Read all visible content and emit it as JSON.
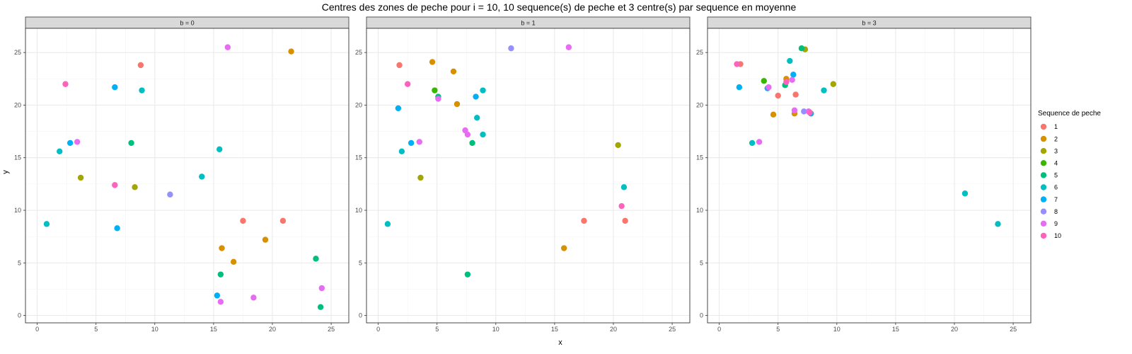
{
  "chart_data": {
    "type": "scatter",
    "title": "Centres des zones de peche pour i = 10, 10 sequence(s) de peche et 3 centre(s) par sequence en moyenne",
    "xlabel": "x",
    "ylabel": "y",
    "xlim": [
      -1,
      26.5
    ],
    "ylim": [
      -0.7,
      27.3
    ],
    "xticks": [
      0,
      5,
      10,
      15,
      20,
      25
    ],
    "yticks": [
      0,
      5,
      10,
      15,
      20,
      25
    ],
    "grid": true,
    "legend": {
      "title": "Sequence de peche",
      "position": "right",
      "entries": [
        {
          "label": "1",
          "color": "#F8766D"
        },
        {
          "label": "2",
          "color": "#D89000"
        },
        {
          "label": "3",
          "color": "#A3A500"
        },
        {
          "label": "4",
          "color": "#39B600"
        },
        {
          "label": "5",
          "color": "#00BF7D"
        },
        {
          "label": "6",
          "color": "#00BFC4"
        },
        {
          "label": "7",
          "color": "#00B0F6"
        },
        {
          "label": "8",
          "color": "#9590FF"
        },
        {
          "label": "9",
          "color": "#E76BF3"
        },
        {
          "label": "10",
          "color": "#FF62BC"
        }
      ]
    },
    "facets": [
      {
        "label": "b = 0",
        "points": [
          {
            "x": 8.8,
            "y": 23.8,
            "seq": "1"
          },
          {
            "x": 17.5,
            "y": 9.0,
            "seq": "1"
          },
          {
            "x": 20.9,
            "y": 9.0,
            "seq": "1"
          },
          {
            "x": 21.6,
            "y": 25.1,
            "seq": "2"
          },
          {
            "x": 15.7,
            "y": 6.4,
            "seq": "2"
          },
          {
            "x": 16.7,
            "y": 5.1,
            "seq": "2"
          },
          {
            "x": 19.4,
            "y": 7.2,
            "seq": "2"
          },
          {
            "x": 3.7,
            "y": 13.1,
            "seq": "3"
          },
          {
            "x": 8.3,
            "y": 12.2,
            "seq": "3"
          },
          {
            "x": 8.0,
            "y": 16.4,
            "seq": "5"
          },
          {
            "x": 15.6,
            "y": 3.9,
            "seq": "5"
          },
          {
            "x": 23.7,
            "y": 5.4,
            "seq": "5"
          },
          {
            "x": 24.1,
            "y": 0.8,
            "seq": "5"
          },
          {
            "x": 8.9,
            "y": 21.4,
            "seq": "6"
          },
          {
            "x": 1.9,
            "y": 15.6,
            "seq": "6"
          },
          {
            "x": 0.8,
            "y": 8.7,
            "seq": "6"
          },
          {
            "x": 15.5,
            "y": 15.8,
            "seq": "6"
          },
          {
            "x": 14.0,
            "y": 13.2,
            "seq": "6"
          },
          {
            "x": 6.6,
            "y": 21.7,
            "seq": "7"
          },
          {
            "x": 2.8,
            "y": 16.4,
            "seq": "7"
          },
          {
            "x": 6.8,
            "y": 8.3,
            "seq": "7"
          },
          {
            "x": 15.3,
            "y": 1.9,
            "seq": "7"
          },
          {
            "x": 11.3,
            "y": 11.5,
            "seq": "8"
          },
          {
            "x": 3.4,
            "y": 16.5,
            "seq": "9"
          },
          {
            "x": 16.2,
            "y": 25.5,
            "seq": "9"
          },
          {
            "x": 18.4,
            "y": 1.7,
            "seq": "9"
          },
          {
            "x": 15.6,
            "y": 1.3,
            "seq": "9"
          },
          {
            "x": 24.2,
            "y": 2.6,
            "seq": "9"
          },
          {
            "x": 2.4,
            "y": 22.0,
            "seq": "10"
          },
          {
            "x": 6.6,
            "y": 12.4,
            "seq": "10"
          }
        ]
      },
      {
        "label": "b = 1",
        "points": [
          {
            "x": 1.8,
            "y": 23.8,
            "seq": "1"
          },
          {
            "x": 17.5,
            "y": 9.0,
            "seq": "1"
          },
          {
            "x": 21.0,
            "y": 9.0,
            "seq": "1"
          },
          {
            "x": 4.6,
            "y": 24.1,
            "seq": "2"
          },
          {
            "x": 6.4,
            "y": 23.2,
            "seq": "2"
          },
          {
            "x": 6.7,
            "y": 20.1,
            "seq": "2"
          },
          {
            "x": 15.8,
            "y": 6.4,
            "seq": "2"
          },
          {
            "x": 3.6,
            "y": 13.1,
            "seq": "3"
          },
          {
            "x": 20.4,
            "y": 16.2,
            "seq": "3"
          },
          {
            "x": 4.8,
            "y": 21.4,
            "seq": "4"
          },
          {
            "x": 5.1,
            "y": 20.8,
            "seq": "5"
          },
          {
            "x": 8.0,
            "y": 16.4,
            "seq": "5"
          },
          {
            "x": 7.6,
            "y": 3.9,
            "seq": "5"
          },
          {
            "x": 8.9,
            "y": 21.4,
            "seq": "6"
          },
          {
            "x": 2.0,
            "y": 15.6,
            "seq": "6"
          },
          {
            "x": 0.8,
            "y": 8.7,
            "seq": "6"
          },
          {
            "x": 8.4,
            "y": 18.8,
            "seq": "6"
          },
          {
            "x": 8.9,
            "y": 17.2,
            "seq": "6"
          },
          {
            "x": 20.9,
            "y": 12.2,
            "seq": "6"
          },
          {
            "x": 8.3,
            "y": 20.8,
            "seq": "7"
          },
          {
            "x": 1.7,
            "y": 19.7,
            "seq": "7"
          },
          {
            "x": 2.8,
            "y": 16.4,
            "seq": "7"
          },
          {
            "x": 11.3,
            "y": 25.4,
            "seq": "8"
          },
          {
            "x": 16.2,
            "y": 25.5,
            "seq": "9"
          },
          {
            "x": 5.1,
            "y": 20.6,
            "seq": "9"
          },
          {
            "x": 7.4,
            "y": 17.6,
            "seq": "9"
          },
          {
            "x": 7.6,
            "y": 17.2,
            "seq": "9"
          },
          {
            "x": 3.5,
            "y": 16.5,
            "seq": "9"
          },
          {
            "x": 2.5,
            "y": 22.0,
            "seq": "10"
          },
          {
            "x": 20.7,
            "y": 10.4,
            "seq": "10"
          }
        ]
      },
      {
        "label": "b = 3",
        "points": [
          {
            "x": 1.8,
            "y": 23.9,
            "seq": "1"
          },
          {
            "x": 5.0,
            "y": 20.9,
            "seq": "1"
          },
          {
            "x": 6.5,
            "y": 21.0,
            "seq": "1"
          },
          {
            "x": 5.7,
            "y": 22.5,
            "seq": "2"
          },
          {
            "x": 4.6,
            "y": 19.1,
            "seq": "2"
          },
          {
            "x": 6.4,
            "y": 19.2,
            "seq": "2"
          },
          {
            "x": 7.3,
            "y": 25.3,
            "seq": "3"
          },
          {
            "x": 9.7,
            "y": 22.0,
            "seq": "3"
          },
          {
            "x": 3.8,
            "y": 22.3,
            "seq": "4"
          },
          {
            "x": 7.0,
            "y": 25.4,
            "seq": "5"
          },
          {
            "x": 5.6,
            "y": 21.9,
            "seq": "5"
          },
          {
            "x": 6.0,
            "y": 24.2,
            "seq": "6"
          },
          {
            "x": 8.9,
            "y": 21.4,
            "seq": "6"
          },
          {
            "x": 2.8,
            "y": 16.4,
            "seq": "6"
          },
          {
            "x": 20.9,
            "y": 11.6,
            "seq": "6"
          },
          {
            "x": 23.7,
            "y": 8.7,
            "seq": "6"
          },
          {
            "x": 6.3,
            "y": 22.9,
            "seq": "7"
          },
          {
            "x": 1.7,
            "y": 21.7,
            "seq": "7"
          },
          {
            "x": 4.1,
            "y": 21.6,
            "seq": "7"
          },
          {
            "x": 7.8,
            "y": 19.2,
            "seq": "7"
          },
          {
            "x": 7.2,
            "y": 19.4,
            "seq": "8"
          },
          {
            "x": 4.2,
            "y": 21.7,
            "seq": "9"
          },
          {
            "x": 6.2,
            "y": 22.4,
            "seq": "9"
          },
          {
            "x": 6.4,
            "y": 19.5,
            "seq": "9"
          },
          {
            "x": 7.6,
            "y": 19.4,
            "seq": "9"
          },
          {
            "x": 3.4,
            "y": 16.5,
            "seq": "9"
          },
          {
            "x": 1.5,
            "y": 23.9,
            "seq": "10"
          },
          {
            "x": 5.7,
            "y": 22.2,
            "seq": "10"
          },
          {
            "x": 7.7,
            "y": 19.3,
            "seq": "10"
          }
        ]
      }
    ]
  }
}
